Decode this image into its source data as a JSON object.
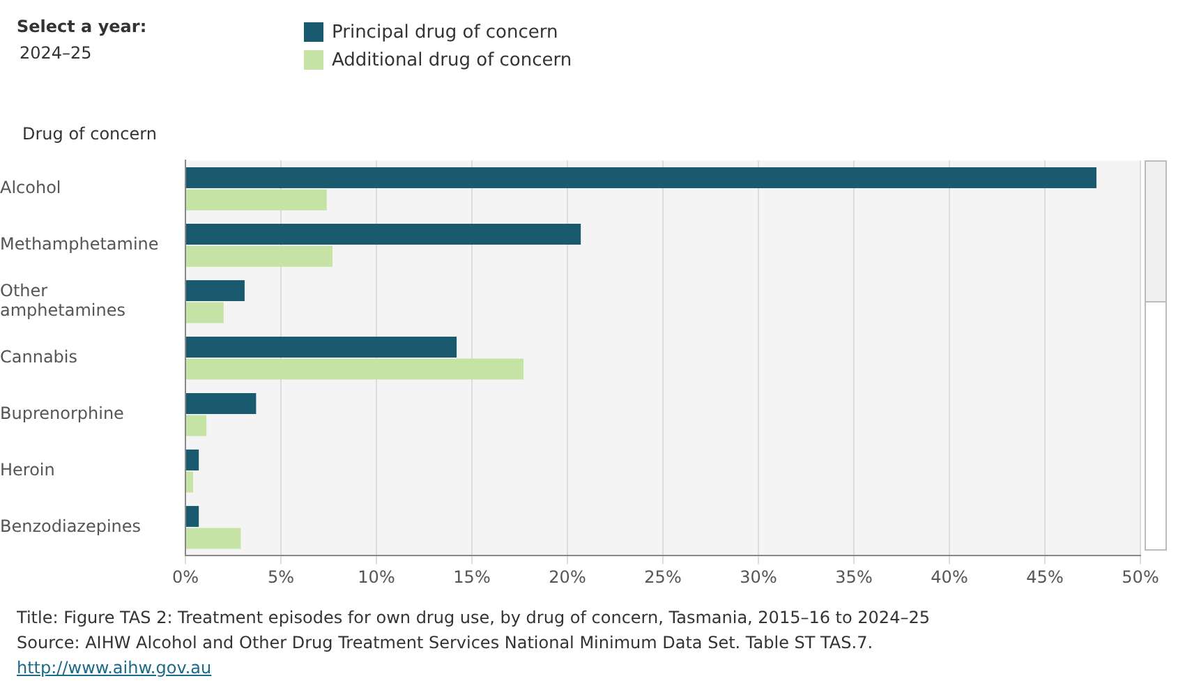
{
  "chart_data": {
    "type": "bar",
    "orientation": "horizontal",
    "title": "Title: Figure TAS 2: Treatment episodes for own drug use, by drug of concern, Tasmania, 2015–16 to 2024–25",
    "ylabel": "Drug of concern",
    "annotations": [
      "Select a year:",
      "2024–25",
      "Source: AIHW Alcohol and Other Drug Treatment Services National Minimum Data Set. Table ST TAS.7.",
      "http://www.aihw.gov.au"
    ],
    "categories": [
      "Alcohol",
      "Methamphetamine",
      "Other amphetamines",
      "Cannabis",
      "Buprenorphine",
      "Heroin",
      "Benzodiazepines"
    ],
    "series": [
      {
        "name": "Principal drug of concern",
        "color": "#1a5a6e",
        "values": [
          47.7,
          20.7,
          3.1,
          14.2,
          3.7,
          0.7,
          0.7
        ]
      },
      {
        "name": "Additional drug of concern",
        "color": "#c5e3a5",
        "values": [
          7.4,
          7.7,
          2.0,
          17.7,
          1.1,
          0.4,
          2.9
        ]
      }
    ],
    "xlim": [
      0,
      50
    ],
    "xticks": [
      {
        "value": 0,
        "label": "0%"
      },
      {
        "value": 5,
        "label": "5%"
      },
      {
        "value": 10,
        "label": "10%"
      },
      {
        "value": 15,
        "label": "15%"
      },
      {
        "value": 20,
        "label": "20%"
      },
      {
        "value": 25,
        "label": "25%"
      },
      {
        "value": 30,
        "label": "30%"
      },
      {
        "value": 35,
        "label": "35%"
      },
      {
        "value": 40,
        "label": "40%"
      },
      {
        "value": 45,
        "label": "45%"
      },
      {
        "value": 50,
        "label": "50%"
      }
    ],
    "grid": "x",
    "legend": "top left"
  }
}
